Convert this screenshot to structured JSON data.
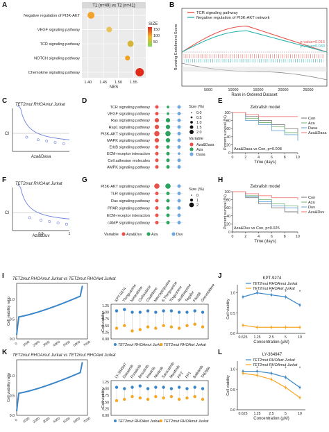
{
  "panels": {
    "A": {
      "letter": "A",
      "title": "T1 (n=49) vs T2 (n=41)",
      "xlabel": "NES",
      "legend_title": "SIZE",
      "legend_ticks": [
        "150",
        "100",
        "50"
      ]
    },
    "B": {
      "letter": "B",
      "legend": [
        "TCR signaling pathway",
        "Negative regulation of  PI3K-AKT network"
      ],
      "pvals": [
        "p-value=0.016",
        "p-value=0.033"
      ],
      "ylabel": "Running Enrichment Score",
      "xlabel": "Rank in Ordered Dataset",
      "xticks": [
        "5000",
        "10000",
        "15000",
        "20000",
        "25000"
      ]
    },
    "C": {
      "letter": "C",
      "title": "TET2mut RHOAmut Jurkat",
      "ylabel": "CI",
      "xlabel": "Aza&Dasa"
    },
    "D": {
      "letter": "D",
      "size_title": "Size (%)",
      "size_ticks": [
        "0.0",
        "0.5",
        "1.0",
        "1.5",
        "2.0"
      ],
      "var_title": "Variable",
      "var_items": [
        "Aza&Dasa",
        "Aza",
        "Dasa"
      ]
    },
    "E": {
      "letter": "E",
      "title": "Zebrafish model",
      "ylabel": "Percent survival (%)",
      "xlabel": "Time (days)",
      "legend": [
        "Con",
        "Aza",
        "Dasa",
        "Aza&Dasa"
      ],
      "note": "Aza&Dasa vs Con, p=0.008",
      "yticks": [
        "0",
        "20",
        "40",
        "60",
        "80",
        "100"
      ],
      "xticks": [
        "0",
        "2",
        "4",
        "6",
        "8",
        "10"
      ]
    },
    "F": {
      "letter": "F",
      "title": "TET2mut RHOAwt Jurkat",
      "ylabel": "CI",
      "xlabel": "Aza&Duv",
      "xticks": [
        "0.5",
        "1"
      ]
    },
    "G": {
      "letter": "G",
      "size_title": "Size (%)",
      "size_ticks": [
        "0",
        "1",
        "2"
      ],
      "var_title": "Variable",
      "var_items": [
        "Aza&Duv",
        "Aza",
        "Duv"
      ]
    },
    "H": {
      "letter": "H",
      "title": "Zebrafish model",
      "ylabel": "Percent survival (%)",
      "xlabel": "Time (days)",
      "legend": [
        "Con",
        "Aza",
        "Duv",
        "Aza&Duv"
      ],
      "note": "Aza&Duv vs Con, p=0.025",
      "yticks": [
        "0",
        "20",
        "40",
        "60",
        "80",
        "100"
      ],
      "xticks": [
        "0",
        "2",
        "4",
        "6",
        "8",
        "10"
      ]
    },
    "I": {
      "letter": "I",
      "title": "TET2mut RHOAmut Jurkat vs TET2mut RHOAwt Jurkat",
      "ylabel": "Cell viability ratio",
      "yticks": [
        "1.0",
        "0.5",
        "0.0"
      ],
      "xticks": [
        "0",
        "1000",
        "2000",
        "3000",
        "4000",
        "5000",
        "6000",
        "7000"
      ],
      "dot_ylabel": "Cell viability",
      "dot_yticks": [
        "0.00",
        "0.25",
        "0.50",
        "0.75",
        "1.00",
        "1.25"
      ],
      "legend": [
        "TET2mut RHOAmut Jurkat",
        "TET2mut RHOAwt Jurkat"
      ]
    },
    "J": {
      "letter": "J",
      "title": "KPT-9274",
      "legend": [
        "TET2mut RHOAmut Jurkat",
        "TET2mut RHOAwt Jurkat"
      ],
      "ylabel": "Cell viability",
      "xlabel": "Concentration (μM)",
      "xticks": [
        "0.625",
        "1.25",
        "2.5",
        "5",
        "10"
      ],
      "yticks": [
        "0.0",
        "0.5",
        "1.0"
      ]
    },
    "K": {
      "letter": "K",
      "title": "TET2mut RHOAmut Jurkat vs TET2mut RHOAwt Jurkat",
      "ylabel": "Cell viability ratio",
      "yticks": [
        "1.0",
        "0.5",
        "0.0"
      ],
      "xticks": [
        "0",
        "1000",
        "2000",
        "3000",
        "4000",
        "5000",
        "6000",
        "7000"
      ],
      "dot_ylabel": "Cell viability",
      "dot_yticks": [
        "0.00",
        "0.25",
        "0.50",
        "0.75",
        "1.00",
        "1.25"
      ],
      "legend": [
        "TET2mut RHOAwt Jurkat",
        "TET2mut RHOAmut Jurkat"
      ]
    },
    "L": {
      "letter": "L",
      "title": "LY-364947",
      "legend": [
        "TET2mut RHOAwt Jurkat",
        "TET2mut RHOAmut Jurkat"
      ],
      "ylabel": "Cell viability",
      "xlabel": "Concentration (μM)",
      "xticks": [
        "0.625",
        "1.25",
        "2.5",
        "5",
        "10"
      ],
      "yticks": [
        "0.0",
        "0.5",
        "1.0"
      ]
    }
  },
  "colors": {
    "blue": "#3a86c8",
    "orange": "#f5a623",
    "red": "#e8524a",
    "teal": "#2ab5b0",
    "green": "#2ca25f",
    "pink": "#f07d7d",
    "gray": "#7f7f7f",
    "lightblue": "#6fa8dc"
  },
  "chart_data": [
    {
      "panel": "A",
      "type": "scatter",
      "categories": [
        "Negative regulation of  PI3K-AKT",
        "VEGF signaling pathway",
        "TCR signaling pathway",
        "NOTCH signaling pathway",
        "Chemokine signaling pathway"
      ],
      "values": [
        1.41,
        1.47,
        1.54,
        1.53,
        1.57
      ],
      "sizes": [
        120,
        80,
        100,
        60,
        160
      ],
      "xticks": [
        "1.40",
        "1.45",
        "1.50",
        "1.55"
      ],
      "xlim": [
        1.38,
        1.59
      ]
    },
    {
      "panel": "B",
      "type": "line",
      "series": [
        {
          "name": "TCR signaling pathway",
          "peak": 0.55
        },
        {
          "name": "Negative regulation of  PI3K-AKT network",
          "peak": 0.45
        }
      ],
      "xlim": [
        0,
        27000
      ]
    },
    {
      "panel": "C",
      "type": "scatter",
      "x": [
        0.25,
        0.45,
        0.6,
        0.75,
        0.9
      ],
      "y": [
        0.55,
        0.45,
        0.4,
        0.35,
        0.3
      ],
      "fit_y_at_start": 0.95
    },
    {
      "panel": "D",
      "type": "scatter",
      "categories": [
        "TCR signaling pathway",
        "VEGF signaling pathway",
        "Ras signaling pathway",
        "Rap1 signaling pathway",
        "PI3K-AKT signaling pathway",
        "MAPK signaling pathway",
        "ErbB signaling pathway",
        "ECM-receptor interaction",
        "Cell adhesion molecules",
        "AMPK signaling pathway"
      ],
      "series": [
        {
          "name": "Aza&Dasa",
          "values": [
            1.0,
            1.0,
            1.5,
            1.5,
            2.0,
            1.5,
            1.0,
            1.0,
            1.0,
            1.0
          ]
        },
        {
          "name": "Aza",
          "values": [
            0.5,
            0.5,
            1.5,
            1.5,
            2.0,
            1.5,
            1.0,
            1.0,
            1.0,
            1.0
          ]
        },
        {
          "name": "Dasa",
          "values": [
            1.0,
            1.0,
            1.0,
            1.0,
            1.0,
            1.0,
            1.0,
            0.5,
            1.0,
            1.0
          ]
        }
      ]
    },
    {
      "panel": "E",
      "type": "line",
      "x": [
        0,
        2,
        4,
        6,
        8,
        10
      ],
      "series": [
        {
          "name": "Con",
          "values": [
            100,
            90,
            80,
            70,
            60,
            50
          ]
        },
        {
          "name": "Aza",
          "values": [
            100,
            85,
            75,
            65,
            50,
            40
          ]
        },
        {
          "name": "Dasa",
          "values": [
            100,
            80,
            70,
            55,
            45,
            30
          ]
        },
        {
          "name": "Aza&Dasa",
          "values": [
            100,
            95,
            90,
            90,
            90,
            90
          ]
        }
      ],
      "ylim": [
        0,
        100
      ]
    },
    {
      "panel": "F",
      "type": "scatter",
      "x": [
        0.3,
        0.5,
        0.65,
        0.8,
        0.95
      ],
      "y": [
        0.5,
        0.4,
        0.35,
        0.3,
        0.25
      ],
      "fit_y_at_start": 0.95
    },
    {
      "panel": "G",
      "type": "scatter",
      "categories": [
        "PI3K-AKT signaling pathway",
        "TLR signaling pathway",
        "Ras signaling pathway",
        "PPAR signaling pathway",
        "ECM-receptor interaction",
        "cAMP signaling pathway"
      ],
      "series": [
        {
          "name": "Aza&Duv",
          "values": [
            2,
            1,
            1,
            1,
            1,
            1
          ]
        },
        {
          "name": "Aza",
          "values": [
            2,
            1,
            1,
            1,
            1,
            1
          ]
        },
        {
          "name": "Duv",
          "values": [
            1,
            1,
            1,
            1,
            1,
            1
          ]
        }
      ]
    },
    {
      "panel": "H",
      "type": "line",
      "x": [
        0,
        2,
        4,
        6,
        8,
        10
      ],
      "series": [
        {
          "name": "Con",
          "values": [
            100,
            85,
            70,
            60,
            50,
            45
          ]
        },
        {
          "name": "Aza",
          "values": [
            100,
            90,
            80,
            70,
            65,
            55
          ]
        },
        {
          "name": "Duv",
          "values": [
            100,
            88,
            75,
            65,
            60,
            50
          ]
        },
        {
          "name": "Aza&Duv",
          "values": [
            100,
            95,
            90,
            85,
            85,
            80
          ]
        }
      ],
      "ylim": [
        0,
        100
      ]
    },
    {
      "panel": "I",
      "type": "line",
      "x_range": [
        0,
        6500
      ],
      "y_start": 0.1,
      "y_end": 1.35,
      "ylim": [
        0,
        1.4
      ]
    },
    {
      "panel": "I-dot",
      "type": "scatter",
      "categories": [
        "KPT-9274",
        "Thioguanine",
        "Nelarabine",
        "Clofarabine",
        "Cladribine",
        "Mercaptopurine",
        "6-Thioguanine",
        "Tioguanine",
        "Azathioprine",
        "Tegafur",
        "FA068",
        "Gemcitabine"
      ],
      "series": [
        {
          "name": "TET2mut RHOAmut Jurkat",
          "values": [
            1.05,
            1.1,
            1.0,
            1.0,
            1.05,
            1.0,
            1.05,
            1.05,
            1.0,
            1.0,
            1.05,
            1.0
          ]
        },
        {
          "name": "TET2mut RHOAwt Jurkat",
          "values": [
            0.4,
            0.5,
            0.3,
            0.35,
            0.45,
            0.4,
            0.5,
            0.45,
            0.4,
            0.5,
            0.55,
            0.45
          ]
        }
      ]
    },
    {
      "panel": "J",
      "type": "line",
      "x": [
        "0.625",
        "1.25",
        "2.5",
        "5",
        "10"
      ],
      "series": [
        {
          "name": "TET2mut RHOAmut Jurkat",
          "values": [
            0.9,
            1.0,
            0.95,
            0.9,
            0.7
          ]
        },
        {
          "name": "TET2mut RHOAwt Jurkat",
          "values": [
            0.2,
            0.15,
            0.15,
            0.15,
            0.15
          ]
        }
      ],
      "ylim": [
        0,
        1.2
      ]
    },
    {
      "panel": "K",
      "type": "line",
      "x_range": [
        0,
        6500
      ],
      "y_start": 0.1,
      "y_end": 1.35,
      "ylim": [
        0,
        1.4
      ]
    },
    {
      "panel": "K-dot",
      "type": "scatter",
      "categories": [
        "LY-364947",
        "Dasatinib",
        "Ponatinib",
        "Bosutinib",
        "Imatinib",
        "Nilotinib",
        "Saracatinib",
        "Masitinib",
        "PP2",
        "PP1",
        "Bafetinib",
        "TAE684"
      ],
      "series": [
        {
          "name": "TET2mut RHOAwt Jurkat",
          "values": [
            1.05,
            1.0,
            1.05,
            1.1,
            1.0,
            1.05,
            1.05,
            1.0,
            1.05,
            1.0,
            1.05,
            1.0
          ]
        },
        {
          "name": "TET2mut RHOAmut Jurkat",
          "values": [
            0.55,
            0.6,
            0.7,
            0.65,
            0.6,
            0.7,
            0.65,
            0.7,
            0.6,
            0.65,
            0.7,
            0.6
          ]
        }
      ]
    },
    {
      "panel": "L",
      "type": "line",
      "x": [
        "0.625",
        "1.25",
        "2.5",
        "5",
        "10"
      ],
      "series": [
        {
          "name": "TET2mut RHOAwt Jurkat",
          "values": [
            0.95,
            0.95,
            0.9,
            0.8,
            0.55
          ]
        },
        {
          "name": "TET2mut RHOAmut Jurkat",
          "values": [
            0.9,
            0.85,
            0.75,
            0.55,
            0.3
          ]
        }
      ],
      "ylim": [
        0,
        1.2
      ]
    }
  ]
}
